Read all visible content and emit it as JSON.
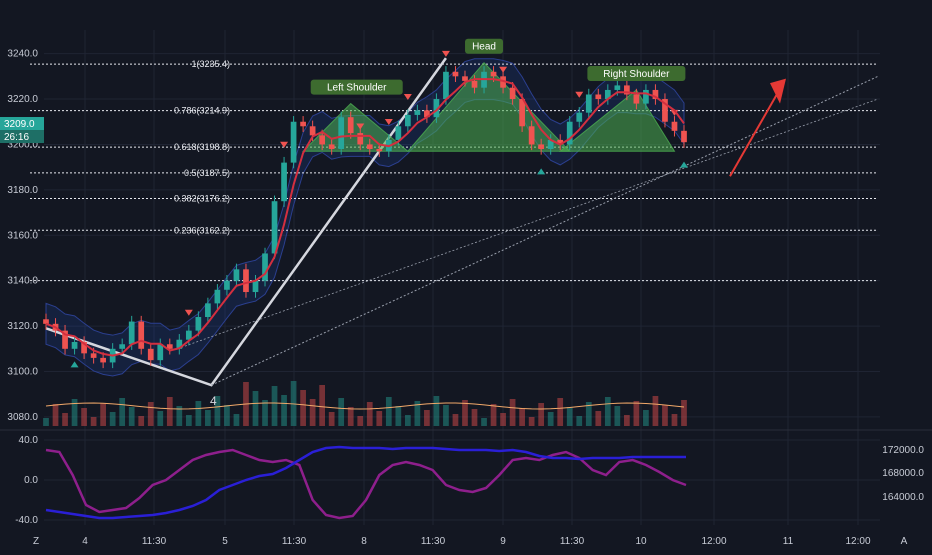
{
  "chart_data": [
    {
      "type": "candlestick",
      "title": "",
      "x_labels": [
        "4",
        "11:30",
        "5",
        "11:30",
        "8",
        "11:30",
        "9",
        "11:30",
        "10",
        "12:00",
        "11",
        "12:00"
      ],
      "y_ticks": [
        "3240.0",
        "3220.0",
        "3200.0",
        "3180.0",
        "3160.0",
        "3140.0",
        "3120.0",
        "3100.0",
        "3080.0"
      ],
      "ylim": [
        3076,
        3246
      ],
      "last_price": "3209.0",
      "countdown": "26:16",
      "fib_levels": [
        {
          "label": "1(3235.4)",
          "value": 3235.4
        },
        {
          "label": "0.786(3214.9)",
          "value": 3214.9
        },
        {
          "label": "0.618(3198.8)",
          "value": 3198.8
        },
        {
          "label": "0.5(3187.5)",
          "value": 3187.5
        },
        {
          "label": "0.382(3176.2)",
          "value": 3176.2
        },
        {
          "label": "0.236(3162.2)",
          "value": 3162.2
        }
      ],
      "extra_level": 3140.0,
      "patterns": [
        {
          "label": "Left Shoulder",
          "apex": 3218
        },
        {
          "label": "Head",
          "apex": 3236
        },
        {
          "label": "Right Shoulder",
          "apex": 3224
        }
      ],
      "wave_label": "4",
      "price_path": [
        3121,
        3118,
        3110,
        3113,
        3108,
        3106,
        3104,
        3110,
        3112,
        3122,
        3110,
        3105,
        3112,
        3110,
        3114,
        3118,
        3124,
        3130,
        3136,
        3140,
        3145,
        3135,
        3140,
        3152,
        3175,
        3192,
        3210,
        3208,
        3204,
        3200,
        3198,
        3212,
        3205,
        3200,
        3198,
        3197,
        3202,
        3208,
        3213,
        3215,
        3212,
        3220,
        3232,
        3230,
        3228,
        3225,
        3232,
        3230,
        3225,
        3220,
        3208,
        3200,
        3198,
        3202,
        3200,
        3210,
        3214,
        3222,
        3220,
        3224,
        3226,
        3222,
        3218,
        3224,
        3220,
        3210,
        3206,
        3201
      ],
      "oscillator": {
        "ylim": [
          -45,
          48
        ],
        "y_ticks": [
          "40.0",
          "0.0",
          "-40.0"
        ],
        "right_ticks": [
          "172000.0",
          "168000.0",
          "164000.0"
        ]
      }
    }
  ],
  "footer": {
    "left_button": "Z",
    "right_button": "A"
  }
}
